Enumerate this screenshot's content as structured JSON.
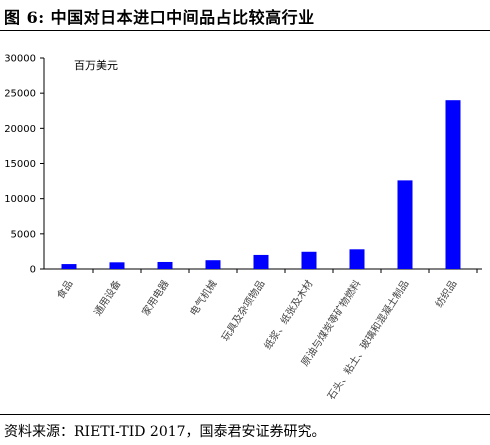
{
  "figure": {
    "title": "图 6:   中国对日本进口中间品占比较高行业",
    "source": "资料来源：RIETI-TID 2017，国泰君安证券研究。"
  },
  "chart_data": {
    "type": "bar",
    "unit": "百万美元",
    "ylim": [
      0,
      30000
    ],
    "yticks": [
      0,
      5000,
      10000,
      15000,
      20000,
      25000,
      30000
    ],
    "grid": false,
    "bar_color": "#0000ff",
    "categories": [
      "食品",
      "通用设备",
      "家用电器",
      "电气机械",
      "玩具及杂项物品",
      "纸浆、纸张及木材",
      "原油与煤炭等矿物燃料",
      "石头、粘土、玻璃和混凝土制品",
      "纺织品"
    ],
    "values": [
      700,
      950,
      1000,
      1250,
      2000,
      2450,
      2800,
      12600,
      24000
    ]
  }
}
